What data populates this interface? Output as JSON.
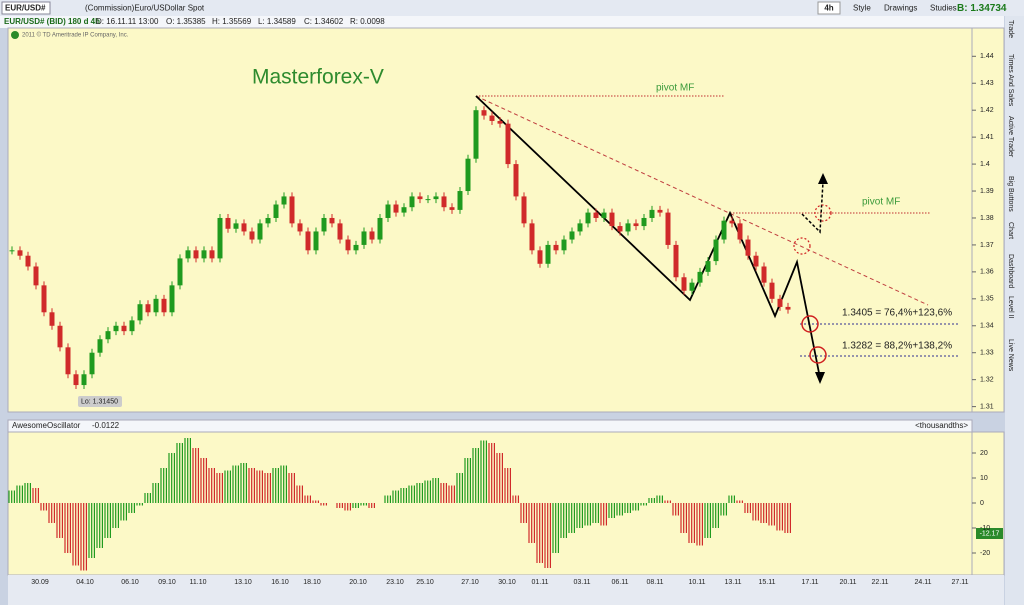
{
  "toolbar": {
    "symbol": "EUR/USD#",
    "description": "(Commission)Euro/USDollar Spot",
    "interval": "4h",
    "buttons": [
      "Style",
      "Drawings",
      "Studies"
    ],
    "bid": "B: 1.34734"
  },
  "info_bar": {
    "study": "EUR/USD# (BID) 180 d 4h",
    "date": "D: 16.11.11 13:00",
    "open": "O: 1.35385",
    "high": "H: 1.35569",
    "low": "L: 1.34589",
    "close": "C: 1.34602",
    "range": "R: 0.0098"
  },
  "copyright": "2011 © TD Ameritrade IP Company, Inc.",
  "side_tabs": [
    "Trade",
    "Times And Sales",
    "Active Trader",
    "Big Buttons",
    "Chart",
    "Dashboard",
    "Level II",
    "Live News"
  ],
  "price_chart": {
    "title": "Masterforex-V",
    "pivot_1": "pivot MF",
    "pivot_2": "pivot MF",
    "target_1": "1.3405 = 76,4%+123,6%",
    "target_2": "1.3282 = 88,2%+138,2%",
    "low_label": "Lo: 1.31450",
    "closes": [
      1.368,
      1.366,
      1.362,
      1.355,
      1.345,
      1.34,
      1.332,
      1.322,
      1.318,
      1.322,
      1.33,
      1.335,
      1.338,
      1.34,
      1.338,
      1.342,
      1.348,
      1.345,
      1.35,
      1.345,
      1.355,
      1.365,
      1.368,
      1.365,
      1.368,
      1.365,
      1.38,
      1.376,
      1.378,
      1.375,
      1.372,
      1.378,
      1.38,
      1.385,
      1.388,
      1.378,
      1.375,
      1.368,
      1.375,
      1.38,
      1.378,
      1.372,
      1.368,
      1.37,
      1.375,
      1.372,
      1.38,
      1.385,
      1.382,
      1.384,
      1.388,
      1.387,
      1.387,
      1.388,
      1.384,
      1.383,
      1.39,
      1.402,
      1.42,
      1.418,
      1.416,
      1.415,
      1.4,
      1.388,
      1.378,
      1.368,
      1.363,
      1.37,
      1.368,
      1.372,
      1.375,
      1.378,
      1.382,
      1.38,
      1.382,
      1.377,
      1.375,
      1.378,
      1.377,
      1.38,
      1.383,
      1.382,
      1.37,
      1.358,
      1.353,
      1.356,
      1.36,
      1.364,
      1.372,
      1.379,
      1.378,
      1.372,
      1.366,
      1.362,
      1.356,
      1.35,
      1.347,
      1.346
    ],
    "ylim": [
      1.308,
      1.4505
    ],
    "yticks": [
      1.31,
      1.32,
      1.33,
      1.34,
      1.35,
      1.36,
      1.37,
      1.38,
      1.39,
      1.4,
      1.41,
      1.42,
      1.43,
      1.44
    ],
    "dates": [
      "30.09",
      "04.10",
      "06.10",
      "09.10",
      "11.10",
      "13.10",
      "16.10",
      "18.10",
      "20.10",
      "23.10",
      "25.10",
      "27.10",
      "30.10",
      "01.11",
      "03.11",
      "06.11",
      "08.11",
      "10.11",
      "13.11",
      "15.11",
      "17.11",
      "20.11",
      "22.11",
      "24.11",
      "27.11"
    ]
  },
  "oscillator": {
    "name": "AwesomeOscillator",
    "value_label": "-0.0122",
    "units_label": "<thousandths>",
    "last_label": "-12.17",
    "values": [
      5,
      7,
      8,
      6,
      -3,
      -8,
      -14,
      -20,
      -25,
      -27,
      -22,
      -18,
      -14,
      -10,
      -7,
      -4,
      -1,
      4,
      8,
      14,
      20,
      24,
      26,
      22,
      18,
      14,
      12,
      13,
      15,
      16,
      14,
      13,
      12,
      14,
      15,
      12,
      7,
      3,
      1,
      -1,
      0,
      -2,
      -3,
      -2,
      -1,
      -2,
      0,
      3,
      5,
      6,
      7,
      8,
      9,
      10,
      8,
      7,
      12,
      18,
      22,
      25,
      24,
      20,
      14,
      3,
      -8,
      -16,
      -24,
      -26,
      -20,
      -14,
      -12,
      -10,
      -9,
      -8,
      -9,
      -6,
      -5,
      -4,
      -3,
      -1,
      2,
      3,
      1,
      -5,
      -12,
      -16,
      -17,
      -14,
      -10,
      -5,
      3,
      1,
      -4,
      -7,
      -8,
      -9,
      -11,
      -12
    ],
    "ylim": [
      -28.8,
      28.4
    ],
    "yticks": [
      20,
      10,
      0,
      -10,
      -20
    ]
  }
}
